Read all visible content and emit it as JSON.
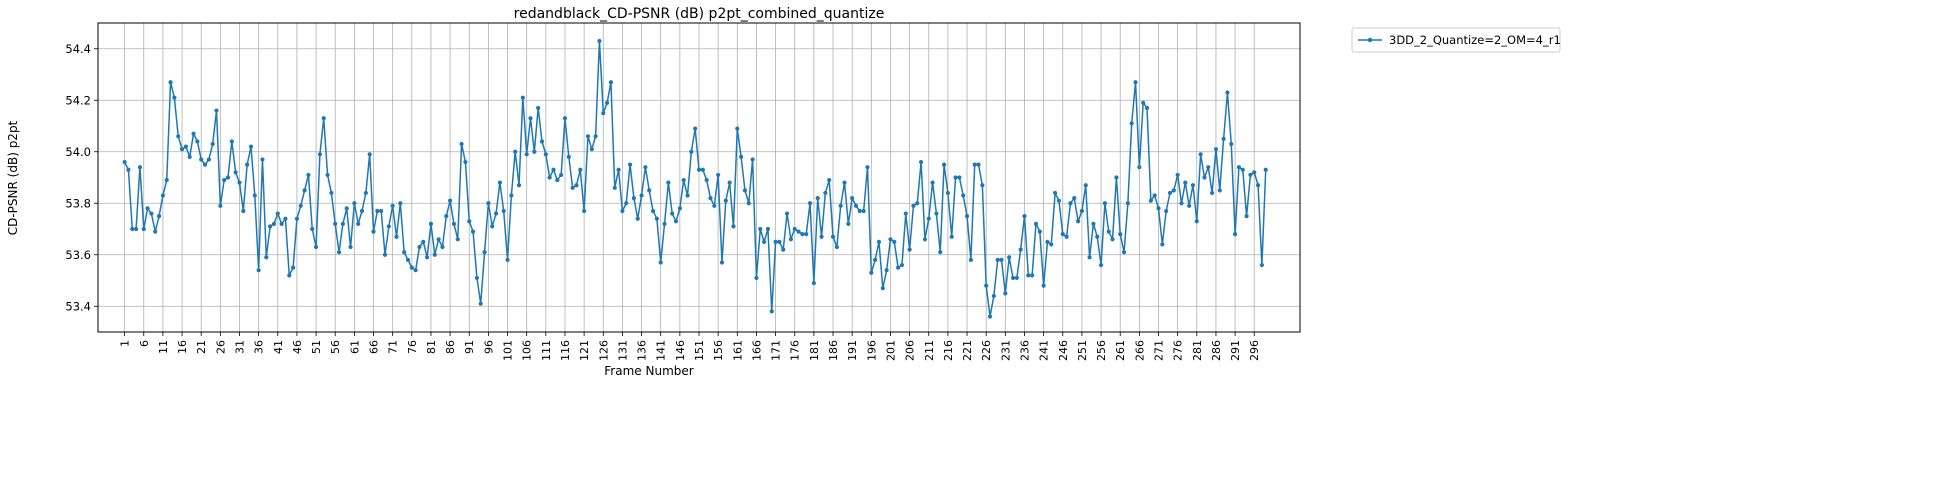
{
  "chart_data": {
    "type": "line",
    "title": "redandblack_CD-PSNR (dB) p2pt_combined_quantize",
    "xlabel": "Frame Number",
    "ylabel": "CD-PSNR (dB) p2pt",
    "x_start": 1,
    "x_tick_step": 5,
    "xlim": [
      -5.95,
      307.95
    ],
    "ylim": [
      53.3,
      54.5
    ],
    "y_ticks": [
      53.4,
      53.6,
      53.8,
      54.0,
      54.2,
      54.4
    ],
    "grid": true,
    "legend": "outside-top-right",
    "series": [
      {
        "name": "3DD_2_Quantize=2_OM=4_r1",
        "color": "#1f77b4",
        "values": [
          53.96,
          53.93,
          53.7,
          53.7,
          53.94,
          53.7,
          53.78,
          53.76,
          53.69,
          53.75,
          53.83,
          53.89,
          54.27,
          54.21,
          54.06,
          54.01,
          54.02,
          53.98,
          54.07,
          54.04,
          53.97,
          53.95,
          53.97,
          54.03,
          54.16,
          53.79,
          53.89,
          53.9,
          54.04,
          53.92,
          53.88,
          53.77,
          53.95,
          54.02,
          53.83,
          53.54,
          53.97,
          53.59,
          53.71,
          53.72,
          53.76,
          53.72,
          53.74,
          53.52,
          53.55,
          53.74,
          53.79,
          53.85,
          53.91,
          53.7,
          53.63,
          53.99,
          54.13,
          53.91,
          53.84,
          53.72,
          53.61,
          53.72,
          53.78,
          53.63,
          53.8,
          53.72,
          53.77,
          53.84,
          53.99,
          53.69,
          53.77,
          53.77,
          53.6,
          53.71,
          53.79,
          53.67,
          53.8,
          53.61,
          53.58,
          53.55,
          53.54,
          53.63,
          53.65,
          53.59,
          53.72,
          53.6,
          53.66,
          53.63,
          53.75,
          53.81,
          53.72,
          53.66,
          54.03,
          53.96,
          53.73,
          53.69,
          53.51,
          53.41,
          53.61,
          53.8,
          53.71,
          53.76,
          53.88,
          53.77,
          53.58,
          53.83,
          54.0,
          53.87,
          54.21,
          53.99,
          54.13,
          54.0,
          54.17,
          54.04,
          53.99,
          53.9,
          53.93,
          53.89,
          53.91,
          54.13,
          53.98,
          53.86,
          53.87,
          53.93,
          53.77,
          54.06,
          54.01,
          54.06,
          54.43,
          54.15,
          54.19,
          54.27,
          53.86,
          53.93,
          53.77,
          53.8,
          53.95,
          53.82,
          53.74,
          53.83,
          53.94,
          53.85,
          53.77,
          53.74,
          53.57,
          53.72,
          53.88,
          53.76,
          53.73,
          53.78,
          53.89,
          53.83,
          54.0,
          54.09,
          53.93,
          53.93,
          53.89,
          53.82,
          53.79,
          53.91,
          53.57,
          53.81,
          53.88,
          53.71,
          54.09,
          53.98,
          53.85,
          53.8,
          53.97,
          53.51,
          53.7,
          53.65,
          53.7,
          53.38,
          53.65,
          53.65,
          53.62,
          53.76,
          53.66,
          53.7,
          53.69,
          53.68,
          53.68,
          53.8,
          53.49,
          53.82,
          53.67,
          53.84,
          53.89,
          53.67,
          53.63,
          53.79,
          53.88,
          53.72,
          53.82,
          53.79,
          53.77,
          53.77,
          53.94,
          53.53,
          53.58,
          53.65,
          53.47,
          53.54,
          53.66,
          53.65,
          53.55,
          53.56,
          53.76,
          53.62,
          53.79,
          53.8,
          53.96,
          53.66,
          53.74,
          53.88,
          53.76,
          53.61,
          53.95,
          53.84,
          53.67,
          53.9,
          53.9,
          53.83,
          53.75,
          53.58,
          53.95,
          53.95,
          53.87,
          53.48,
          53.36,
          53.44,
          53.58,
          53.58,
          53.45,
          53.59,
          53.51,
          53.51,
          53.62,
          53.75,
          53.52,
          53.52,
          53.72,
          53.69,
          53.48,
          53.65,
          53.64,
          53.84,
          53.81,
          53.68,
          53.67,
          53.8,
          53.82,
          53.73,
          53.77,
          53.87,
          53.59,
          53.72,
          53.67,
          53.56,
          53.8,
          53.69,
          53.66,
          53.9,
          53.68,
          53.61,
          53.8,
          54.11,
          54.27,
          53.94,
          54.19,
          54.17,
          53.81,
          53.83,
          53.78,
          53.64,
          53.77,
          53.84,
          53.85,
          53.91,
          53.8,
          53.88,
          53.79,
          53.87,
          53.73,
          53.99,
          53.9,
          53.94,
          53.84,
          54.01,
          53.85,
          54.05,
          54.23,
          54.03,
          53.68,
          53.94,
          53.93,
          53.75,
          53.91,
          53.92,
          53.87,
          53.56,
          53.93
        ]
      }
    ]
  }
}
